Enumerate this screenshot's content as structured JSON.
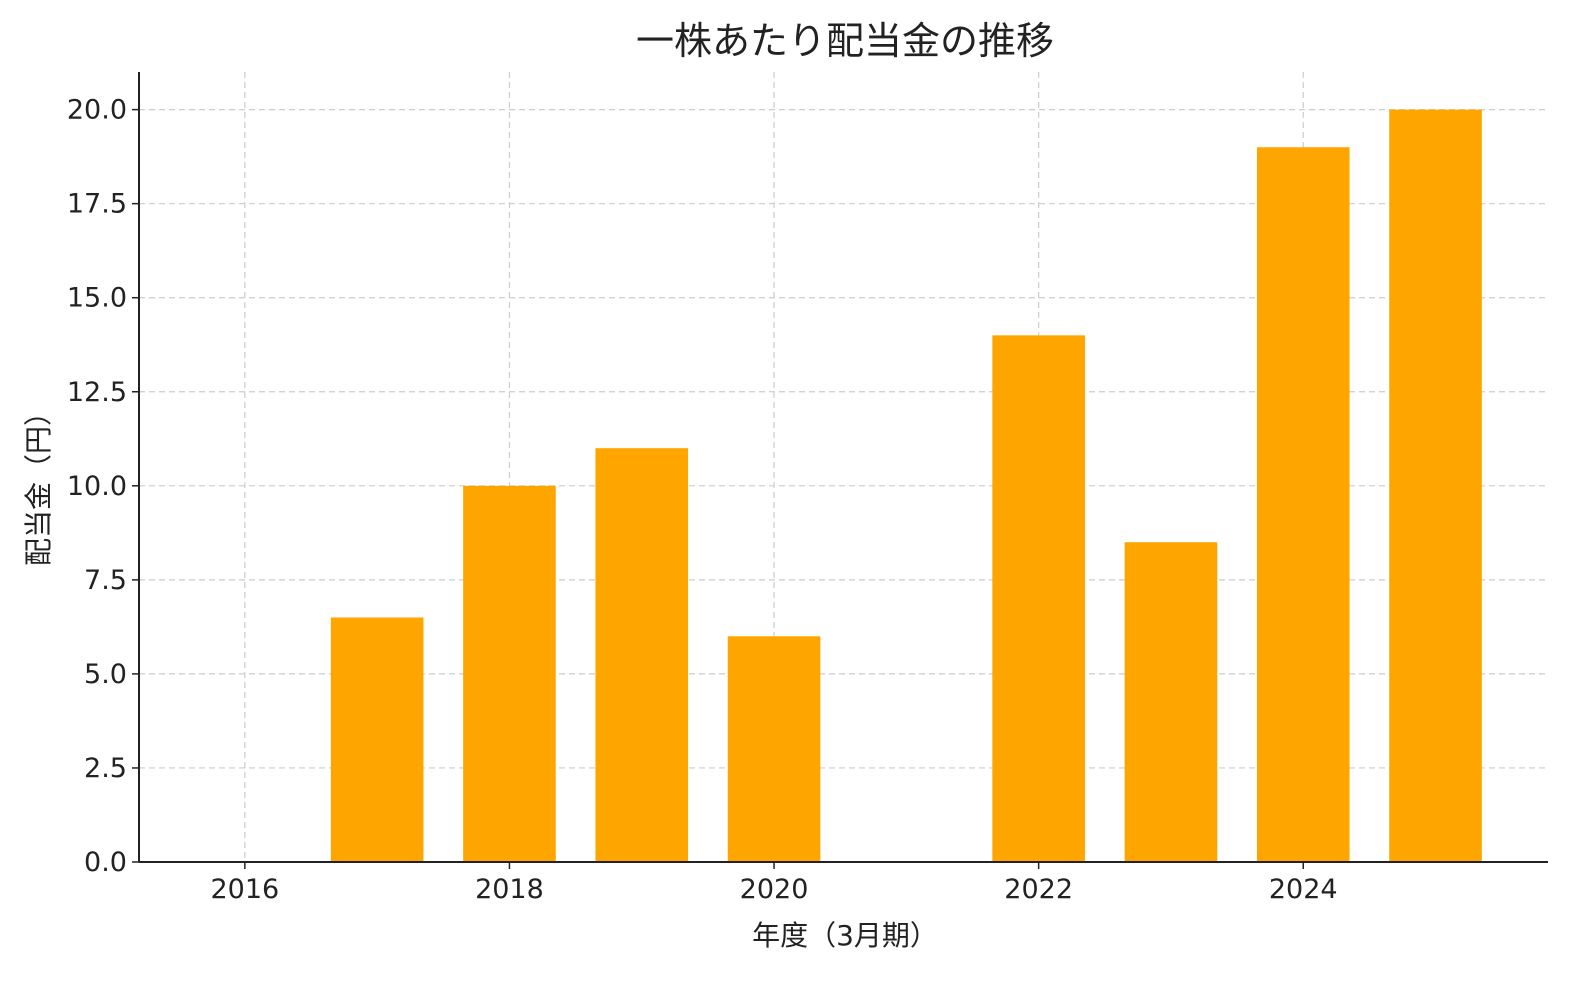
{
  "chart_data": {
    "type": "bar",
    "title": "一株あたり配当金の推移",
    "xlabel": "年度（3月期）",
    "ylabel": "配当金（円）",
    "x": [
      2017,
      2018,
      2019,
      2020,
      2022,
      2023,
      2024,
      2025
    ],
    "values": [
      6.5,
      10,
      11,
      6,
      14,
      8.5,
      19,
      20
    ],
    "xlim": [
      2015.2,
      2025.85
    ],
    "ylim": [
      0,
      21
    ],
    "x_ticks": [
      "2016",
      "2018",
      "2020",
      "2022",
      "2024"
    ],
    "y_ticks": [
      "0.0",
      "2.5",
      "5.0",
      "7.5",
      "10.0",
      "12.5",
      "15.0",
      "17.5",
      "20.0"
    ],
    "grid": true,
    "bar_color": "#FFA500",
    "grid_color": "#cccccc",
    "axis_color": "#222222"
  }
}
